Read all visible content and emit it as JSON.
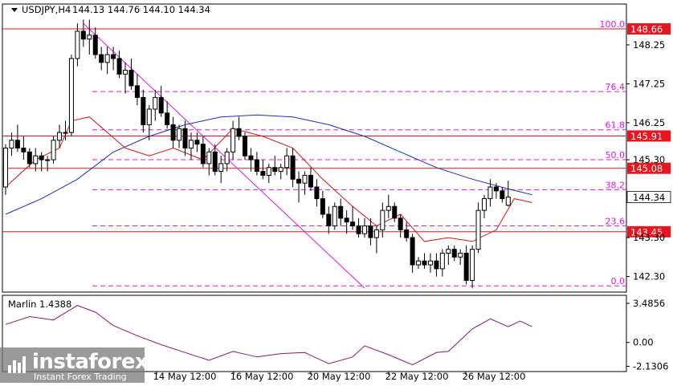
{
  "chart_data": {
    "type": "candlestick",
    "symbol_label": "USDJPY,H4",
    "ohlc_label": "144.13 144.76 144.10 144.34",
    "current_price": {
      "value": 144.34,
      "label": "144.34"
    },
    "price_axis": {
      "ylim": [
        141.9,
        149.3
      ],
      "ticks": [
        {
          "v": 148.25,
          "label": "148.25"
        },
        {
          "v": 147.25,
          "label": "147.25"
        },
        {
          "v": 146.25,
          "label": "146.25"
        },
        {
          "v": 145.3,
          "label": "145.30"
        },
        {
          "v": 143.3,
          "label": "143.30"
        },
        {
          "v": 142.3,
          "label": "142.30"
        }
      ]
    },
    "levels": [
      {
        "v": 148.66,
        "label": "148.66",
        "color": "#e8141f"
      },
      {
        "v": 145.91,
        "label": "145.91",
        "color": "#e8141f"
      },
      {
        "v": 145.08,
        "label": "145.08",
        "color": "#e8141f"
      },
      {
        "v": 143.45,
        "label": "143.45",
        "color": "#e8141f"
      }
    ],
    "fibonacci": [
      {
        "v": 148.66,
        "label": "100.0"
      },
      {
        "v": 147.05,
        "label": "76.4"
      },
      {
        "v": 146.07,
        "label": "61.8"
      },
      {
        "v": 145.3,
        "label": "50.0"
      },
      {
        "v": 144.53,
        "label": "38.2"
      },
      {
        "v": 143.6,
        "label": "23.6"
      },
      {
        "v": 142.06,
        "label": "0.0"
      }
    ],
    "x_labels": [
      "14 May 12:00",
      "16 May 12:00",
      "20 May 12:00",
      "22 May 12:00",
      "26 May 12:00"
    ],
    "candles": [
      [
        144.6,
        145.7,
        144.4,
        145.6
      ],
      [
        145.6,
        146.0,
        145.4,
        145.8
      ],
      [
        145.8,
        146.2,
        145.5,
        145.6
      ],
      [
        145.6,
        145.9,
        145.3,
        145.5
      ],
      [
        145.5,
        145.6,
        145.1,
        145.2
      ],
      [
        145.2,
        145.6,
        145.0,
        145.4
      ],
      [
        145.4,
        145.5,
        145.0,
        145.3
      ],
      [
        145.3,
        145.4,
        145.0,
        145.3
      ],
      [
        145.3,
        145.9,
        145.2,
        145.8
      ],
      [
        145.8,
        146.2,
        145.6,
        146.0
      ],
      [
        146.0,
        146.3,
        145.8,
        146.0
      ],
      [
        146.0,
        148.0,
        145.9,
        147.9
      ],
      [
        147.9,
        148.8,
        147.7,
        148.6
      ],
      [
        148.6,
        148.9,
        148.2,
        148.4
      ],
      [
        148.4,
        148.9,
        148.0,
        148.5
      ],
      [
        148.5,
        148.7,
        147.9,
        148.0
      ],
      [
        148.0,
        148.2,
        147.6,
        147.8
      ],
      [
        147.8,
        148.2,
        147.5,
        148.0
      ],
      [
        148.0,
        148.2,
        147.6,
        147.9
      ],
      [
        147.9,
        148.1,
        147.4,
        147.5
      ],
      [
        147.5,
        147.8,
        147.0,
        147.6
      ],
      [
        147.6,
        147.9,
        147.1,
        147.2
      ],
      [
        147.2,
        147.5,
        146.7,
        146.9
      ],
      [
        146.9,
        147.1,
        146.0,
        146.2
      ],
      [
        146.2,
        146.7,
        145.8,
        146.6
      ],
      [
        146.6,
        147.1,
        146.3,
        146.9
      ],
      [
        146.9,
        147.2,
        146.4,
        146.5
      ],
      [
        146.5,
        146.8,
        146.1,
        146.2
      ],
      [
        146.2,
        146.4,
        145.6,
        145.8
      ],
      [
        145.8,
        146.2,
        145.6,
        146.1
      ],
      [
        146.1,
        146.3,
        145.4,
        145.6
      ],
      [
        145.6,
        146.0,
        145.3,
        145.8
      ],
      [
        145.8,
        146.0,
        145.5,
        145.7
      ],
      [
        145.7,
        145.9,
        145.1,
        145.2
      ],
      [
        145.2,
        145.6,
        144.9,
        145.5
      ],
      [
        145.5,
        145.7,
        144.9,
        145.0
      ],
      [
        145.0,
        145.4,
        144.7,
        145.2
      ],
      [
        145.2,
        145.6,
        145.0,
        145.5
      ],
      [
        145.5,
        146.3,
        145.3,
        146.1
      ],
      [
        146.1,
        146.4,
        145.8,
        145.9
      ],
      [
        145.9,
        146.0,
        145.3,
        145.4
      ],
      [
        145.4,
        145.6,
        145.0,
        145.3
      ],
      [
        145.3,
        145.5,
        144.9,
        145.0
      ],
      [
        145.0,
        145.3,
        144.8,
        144.9
      ],
      [
        144.9,
        145.2,
        144.7,
        145.1
      ],
      [
        145.1,
        145.4,
        144.9,
        145.0
      ],
      [
        145.0,
        145.2,
        144.8,
        145.1
      ],
      [
        145.1,
        145.6,
        144.9,
        145.4
      ],
      [
        145.4,
        145.6,
        144.6,
        144.8
      ],
      [
        144.8,
        145.0,
        144.2,
        144.7
      ],
      [
        144.7,
        145.0,
        144.4,
        144.9
      ],
      [
        144.9,
        145.1,
        144.5,
        144.6
      ],
      [
        144.6,
        144.8,
        144.1,
        144.3
      ],
      [
        144.3,
        144.5,
        143.8,
        143.9
      ],
      [
        143.9,
        144.1,
        143.4,
        143.6
      ],
      [
        143.6,
        144.2,
        143.5,
        144.1
      ],
      [
        144.1,
        144.3,
        143.6,
        143.8
      ],
      [
        143.8,
        144.0,
        143.4,
        143.7
      ],
      [
        143.7,
        144.1,
        143.5,
        143.6
      ],
      [
        143.6,
        143.8,
        143.3,
        143.4
      ],
      [
        143.4,
        143.8,
        143.3,
        143.6
      ],
      [
        143.6,
        143.8,
        143.1,
        143.3
      ],
      [
        143.3,
        143.6,
        142.9,
        143.5
      ],
      [
        143.5,
        144.2,
        143.3,
        144.0
      ],
      [
        144.0,
        144.4,
        143.8,
        144.1
      ],
      [
        144.1,
        144.2,
        143.7,
        143.8
      ],
      [
        143.8,
        143.9,
        143.3,
        143.5
      ],
      [
        143.5,
        143.7,
        143.2,
        143.3
      ],
      [
        143.3,
        143.4,
        142.4,
        142.6
      ],
      [
        142.6,
        142.8,
        142.5,
        142.7
      ],
      [
        142.7,
        142.9,
        142.5,
        142.6
      ],
      [
        142.6,
        142.9,
        142.4,
        142.7
      ],
      [
        142.7,
        142.9,
        142.3,
        142.5
      ],
      [
        142.5,
        143.0,
        142.3,
        142.9
      ],
      [
        142.9,
        143.1,
        142.6,
        143.0
      ],
      [
        143.0,
        143.1,
        142.7,
        142.8
      ],
      [
        142.8,
        143.0,
        142.6,
        142.9
      ],
      [
        142.9,
        143.1,
        142.1,
        142.2
      ],
      [
        142.2,
        143.1,
        142.0,
        143.0
      ],
      [
        143.0,
        144.2,
        142.9,
        144.0
      ],
      [
        144.0,
        144.4,
        143.8,
        144.3
      ],
      [
        144.3,
        144.8,
        144.1,
        144.6
      ],
      [
        144.6,
        144.7,
        144.3,
        144.5
      ],
      [
        144.5,
        144.6,
        144.2,
        144.3
      ],
      [
        144.13,
        144.76,
        144.1,
        144.34
      ]
    ],
    "ma_blue": [
      [
        0,
        143.9
      ],
      [
        6,
        144.3
      ],
      [
        12,
        144.8
      ],
      [
        18,
        145.5
      ],
      [
        24,
        145.9
      ],
      [
        30,
        146.2
      ],
      [
        36,
        146.4
      ],
      [
        42,
        146.45
      ],
      [
        48,
        146.4
      ],
      [
        54,
        146.2
      ],
      [
        60,
        145.9
      ],
      [
        66,
        145.5
      ],
      [
        72,
        145.1
      ],
      [
        78,
        144.8
      ],
      [
        84,
        144.55
      ],
      [
        88,
        144.4
      ]
    ],
    "ma_red": [
      [
        0,
        144.6
      ],
      [
        5,
        145.3
      ],
      [
        9,
        145.6
      ],
      [
        11,
        146.3
      ],
      [
        14,
        146.4
      ],
      [
        17,
        146.0
      ],
      [
        20,
        145.6
      ],
      [
        24,
        145.4
      ],
      [
        28,
        145.6
      ],
      [
        33,
        145.3
      ],
      [
        38,
        146.1
      ],
      [
        43,
        145.9
      ],
      [
        48,
        145.6
      ],
      [
        53,
        144.8
      ],
      [
        58,
        144.1
      ],
      [
        62,
        143.6
      ],
      [
        66,
        143.9
      ],
      [
        70,
        143.2
      ],
      [
        74,
        143.3
      ],
      [
        78,
        143.2
      ],
      [
        82,
        143.5
      ],
      [
        85,
        144.3
      ],
      [
        88,
        144.2
      ]
    ],
    "trendline": [
      [
        13,
        148.8
      ],
      [
        60,
        142.0
      ]
    ],
    "marlin": {
      "label": "Marlin 1.4388",
      "ylim": [
        -2.6,
        4.2
      ],
      "ticks": [
        {
          "v": 3.4856,
          "label": "3.4856"
        },
        {
          "v": 0.0,
          "label": "0.00"
        },
        {
          "v": -2.1306,
          "label": "-2.1306"
        }
      ],
      "values": [
        [
          0,
          1.6
        ],
        [
          4,
          2.3
        ],
        [
          8,
          2.0
        ],
        [
          12,
          3.3
        ],
        [
          15,
          2.7
        ],
        [
          18,
          1.5
        ],
        [
          22,
          0.6
        ],
        [
          26,
          -0.2
        ],
        [
          30,
          -0.9
        ],
        [
          34,
          -1.6
        ],
        [
          38,
          -0.8
        ],
        [
          42,
          -1.3
        ],
        [
          46,
          -1.0
        ],
        [
          50,
          -0.9
        ],
        [
          54,
          -1.9
        ],
        [
          58,
          -1.3
        ],
        [
          60,
          -0.3
        ],
        [
          64,
          -1.1
        ],
        [
          68,
          -2.0
        ],
        [
          72,
          -0.9
        ],
        [
          74,
          -0.8
        ],
        [
          78,
          1.2
        ],
        [
          81,
          2.1
        ],
        [
          84,
          1.4
        ],
        [
          86,
          1.9
        ],
        [
          88,
          1.4
        ]
      ]
    }
  },
  "watermark": {
    "brand": "instaforex",
    "tagline": "Instant Forex Trading"
  },
  "colors": {
    "up": "#ffffff",
    "down": "#000000",
    "level": "#e8141f",
    "fib": "#d81bd8",
    "ma_blue": "#1c2fb8",
    "ma_red": "#d01820",
    "trend": "#d81bd8",
    "osc": "#8b1a6b"
  }
}
